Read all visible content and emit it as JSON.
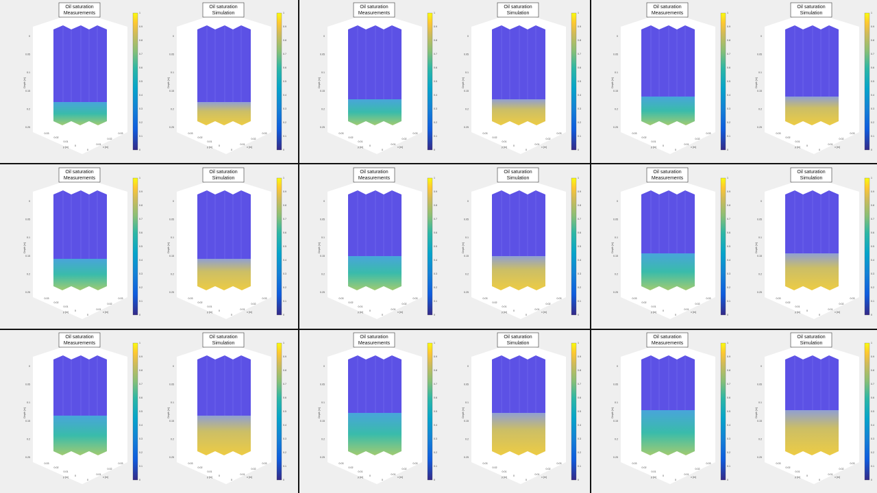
{
  "plot": {
    "title": "Oil saturation",
    "subtitles": [
      "Measurements",
      "Simulation"
    ],
    "depth_label": "Depth [m]",
    "x_label": "x [m]",
    "y_label": "y [m]",
    "depth_ticks": [
      0,
      0.05,
      0.1,
      0.15,
      0.2,
      0.25
    ],
    "y_ticks": [
      0.03,
      0.02,
      0.01,
      0
    ],
    "x_ticks": [
      0,
      0.01,
      0.02,
      0.03
    ],
    "colorbar_ticks": [
      0,
      0.1,
      0.2,
      0.3,
      0.4,
      0.5,
      0.6,
      0.7,
      0.8,
      0.9,
      1
    ]
  }
}
